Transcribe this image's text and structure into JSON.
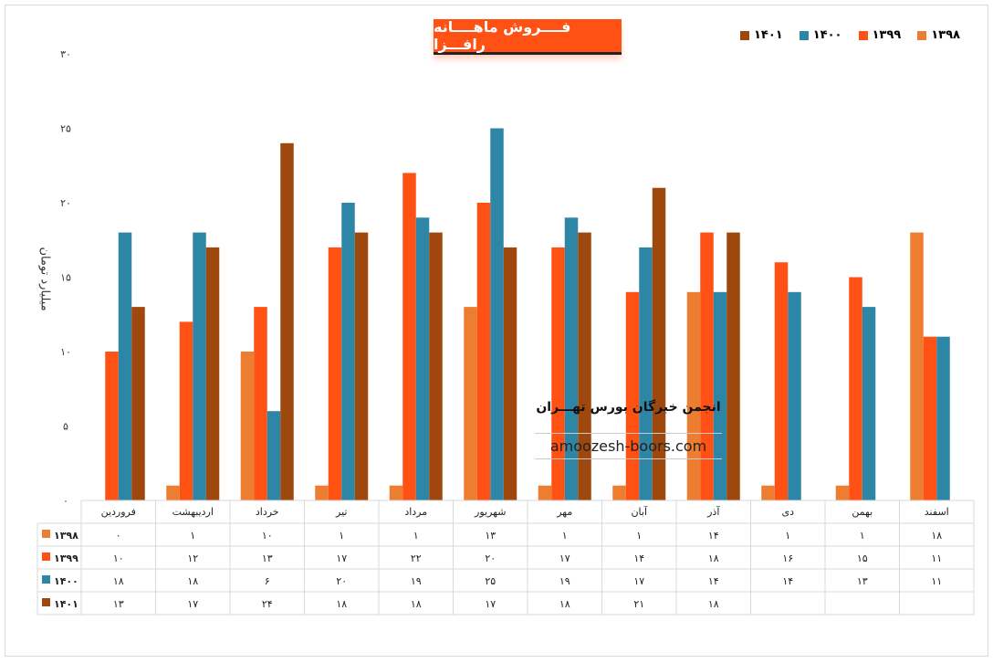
{
  "chart_data": {
    "type": "bar",
    "title": "فــــروش ماهــــانه رافـــزا",
    "ylabel": "میلیارد تومان",
    "ylim": [
      0,
      30
    ],
    "yticks": [
      0,
      5,
      10,
      15,
      20,
      25,
      30
    ],
    "grid": false,
    "legend": "top-right",
    "categories": [
      "فروردین",
      "اردیبهشت",
      "خرداد",
      "تیر",
      "مرداد",
      "شهریور",
      "مهر",
      "آبان",
      "آذر",
      "دی",
      "بهمن",
      "اسفند"
    ],
    "series": [
      {
        "name": "۱۳۹۸",
        "color": "#ed7d31",
        "values": [
          0,
          1,
          10,
          1,
          1,
          13,
          1,
          1,
          14,
          1,
          1,
          18
        ]
      },
      {
        "name": "۱۳۹۹",
        "color": "#fe5113",
        "values": [
          10,
          12,
          13,
          17,
          22,
          20,
          17,
          14,
          18,
          16,
          15,
          11
        ]
      },
      {
        "name": "۱۴۰۰",
        "color": "#2e86a6",
        "values": [
          18,
          18,
          6,
          20,
          19,
          25,
          19,
          17,
          14,
          14,
          13,
          11
        ]
      },
      {
        "name": "۱۴۰۱",
        "color": "#9e480e",
        "values": [
          13,
          17,
          24,
          18,
          18,
          17,
          18,
          21,
          18,
          null,
          null,
          null
        ]
      }
    ],
    "data_table": true
  },
  "watermark": {
    "line1": "انجمن خبرگان بورس تهـــران",
    "line2": "amoozesh-boors.com"
  }
}
